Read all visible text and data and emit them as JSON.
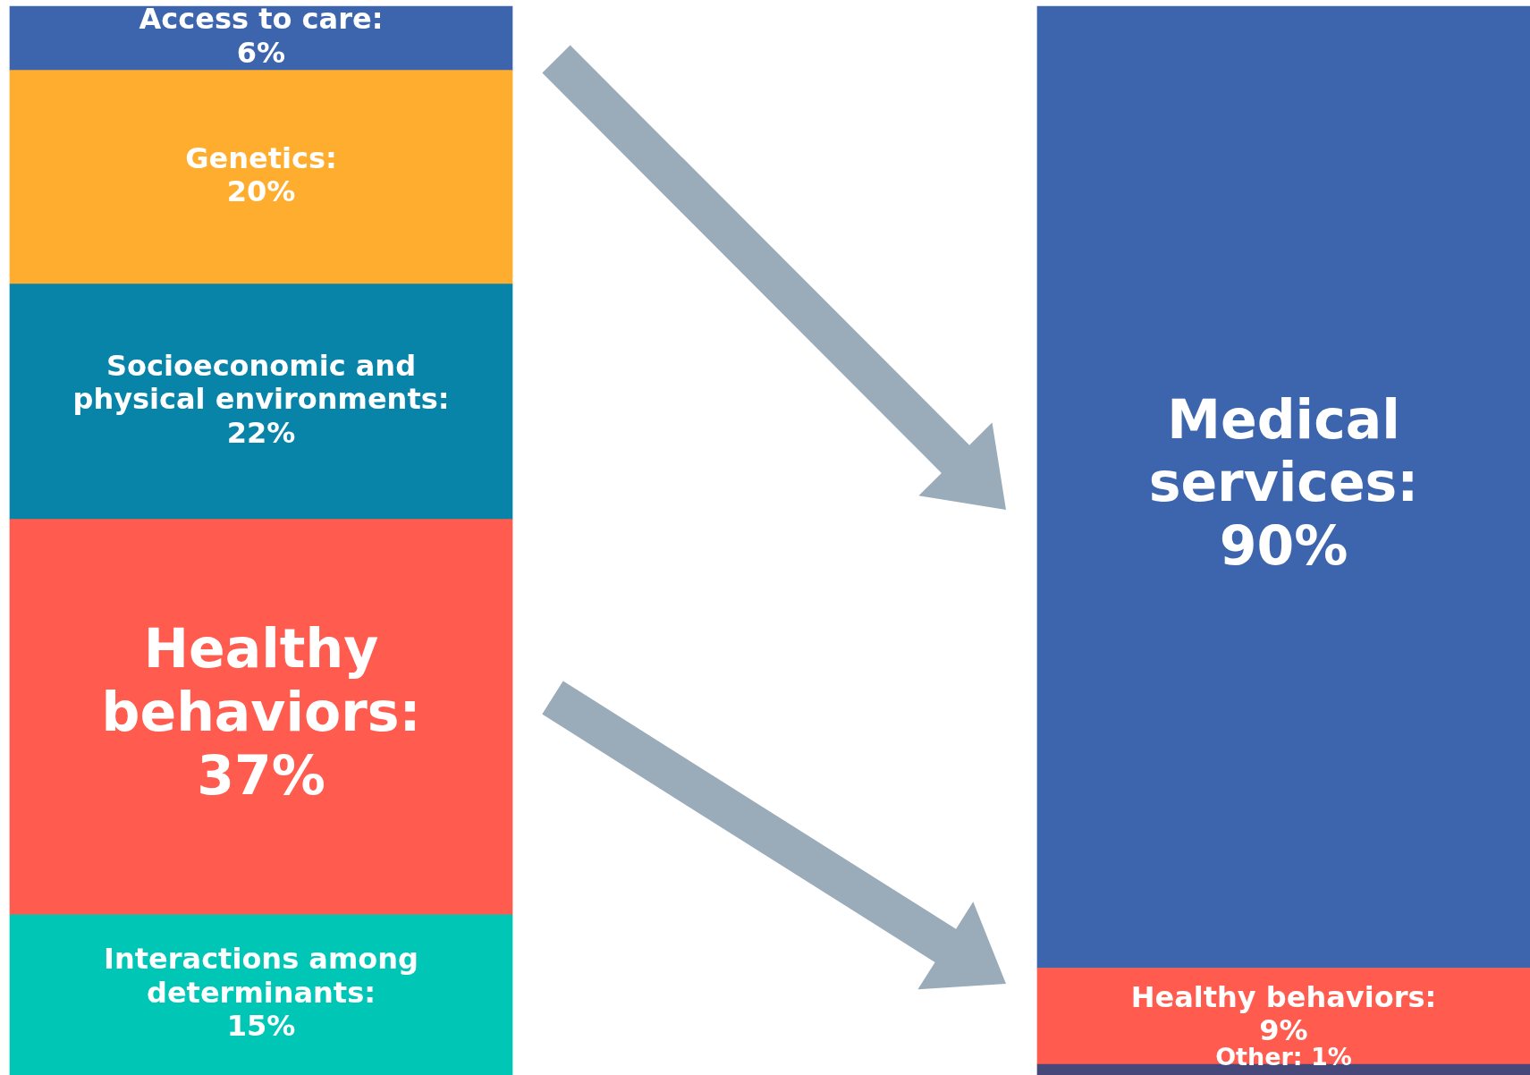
{
  "chart_data": {
    "type": "bar",
    "stacked": true,
    "categories": [
      null,
      null
    ],
    "legend": false,
    "grid": false,
    "tick_labels": false,
    "series": [
      {
        "name": "Interactions among determinants:",
        "color": "#00c6b6",
        "values": [
          15,
          null
        ],
        "value_labels": [
          "15%",
          null
        ]
      },
      {
        "name": "Other:",
        "color": "#46487a",
        "values": [
          null,
          1
        ],
        "value_labels": [
          null,
          "1%"
        ]
      },
      {
        "name": "Healthy behaviors:",
        "color": "#ff5b4f",
        "values": [
          37,
          9
        ],
        "value_labels": [
          "37%",
          "9%"
        ]
      },
      {
        "name": "Socioeconomic and physical environments:",
        "color": "#0784a8",
        "values": [
          22,
          null
        ],
        "value_labels": [
          "22%",
          null
        ]
      },
      {
        "name": "Genetics:",
        "color": "#ffad2f",
        "values": [
          20,
          null
        ],
        "value_labels": [
          "20%",
          null
        ]
      },
      {
        "name": "Medical services:",
        "color": "#3d65ae",
        "values": [
          null,
          90
        ],
        "value_labels": [
          null,
          "90%"
        ]
      },
      {
        "name": "Access to care:",
        "color": "#3d65ae",
        "values": [
          6,
          null
        ],
        "value_labels": [
          "6%",
          null
        ]
      }
    ]
  }
}
